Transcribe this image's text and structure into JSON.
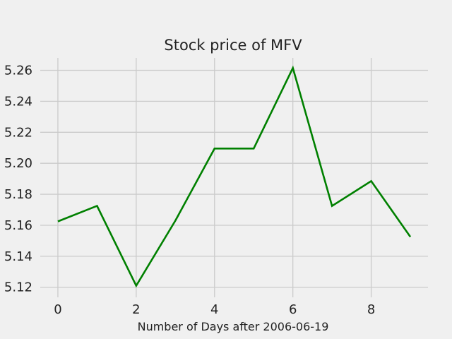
{
  "chart_data": {
    "type": "line",
    "title": "Stock price of MFV",
    "xlabel": "Number of Days after 2006-06-19",
    "ylabel": "",
    "x": [
      0,
      1,
      2,
      3,
      4,
      5,
      6,
      7,
      8,
      9
    ],
    "series": [
      {
        "values": [
          5.1625,
          5.1725,
          5.121,
          5.163,
          5.2095,
          5.2095,
          5.2615,
          5.1725,
          5.1885,
          5.1525
        ],
        "color": "#008000"
      }
    ],
    "xlim": [
      -0.45,
      9.45
    ],
    "ylim": [
      5.1135,
      5.268
    ],
    "xticks": [
      0,
      2,
      4,
      6,
      8
    ],
    "xtick_labels": [
      "0",
      "2",
      "4",
      "6",
      "8"
    ],
    "yticks": [
      5.12,
      5.14,
      5.16,
      5.18,
      5.2,
      5.22,
      5.24,
      5.26
    ],
    "ytick_labels": [
      "5.12",
      "5.14",
      "5.16",
      "5.18",
      "5.20",
      "5.22",
      "5.24",
      "5.26"
    ],
    "grid": true,
    "background_color": "#f0f0f0",
    "grid_color": "#cbcbcb"
  }
}
